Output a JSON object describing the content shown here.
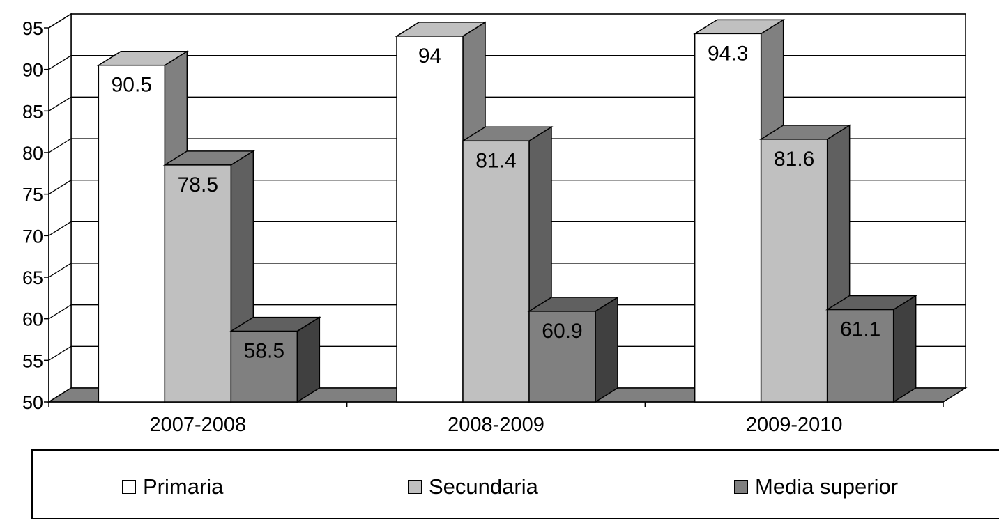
{
  "chart_data": {
    "type": "bar",
    "style": "3d-clustered-column",
    "categories": [
      "2007-2008",
      "2008-2009",
      "2009-2010"
    ],
    "series": [
      {
        "name": "Primaria",
        "values": [
          90.5,
          94,
          94.3
        ],
        "color": "#ffffff",
        "side_color": "#808080",
        "top_color": "#c0c0c0"
      },
      {
        "name": "Secundaria",
        "values": [
          78.5,
          81.4,
          81.6
        ],
        "color": "#c0c0c0",
        "side_color": "#606060",
        "top_color": "#808080"
      },
      {
        "name": "Media superior",
        "values": [
          58.5,
          60.9,
          61.1
        ],
        "color": "#808080",
        "side_color": "#404040",
        "top_color": "#606060"
      }
    ],
    "data_labels": [
      [
        "90.5",
        "94",
        "94.3"
      ],
      [
        "78.5",
        "81.4",
        "81.6"
      ],
      [
        "58.5",
        "60.9",
        "61.1"
      ]
    ],
    "yticks": [
      "50",
      "55",
      "60",
      "65",
      "70",
      "75",
      "80",
      "85",
      "90",
      "95"
    ],
    "ylim": [
      50,
      95
    ],
    "grid": true,
    "legend_position": "bottom",
    "title": "",
    "xlabel": "",
    "ylabel": ""
  }
}
